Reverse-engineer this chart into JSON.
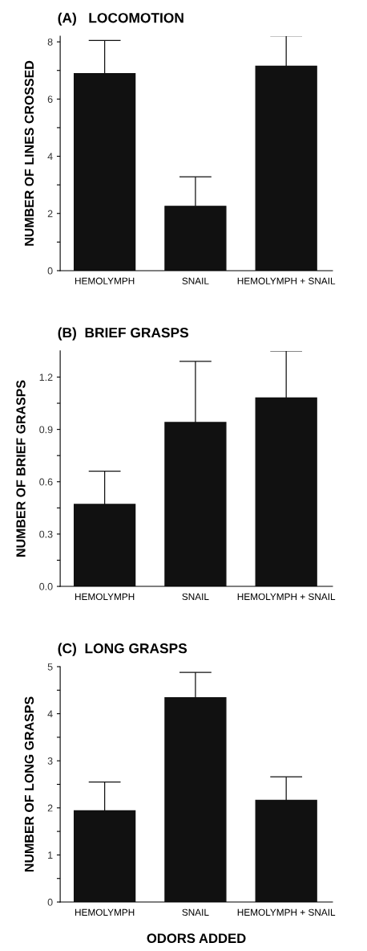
{
  "chart_data": [
    {
      "type": "bar",
      "title": "(A)   LOCOMOTION",
      "ylabel": "NUMBER OF LINES CROSSED",
      "categories": [
        "HEMOLYMPH",
        "SNAIL",
        "HEMOLYMPH + SNAIL"
      ],
      "values": [
        6.89,
        2.25,
        7.15
      ],
      "errors": [
        [
          6.89,
          8.05
        ],
        [
          2.25,
          3.28
        ],
        [
          7.15,
          8.21
        ]
      ],
      "color": "#111111",
      "ylim": [
        0,
        8.2
      ],
      "yticks": [
        0,
        {
          "value": 1,
          "label": null
        },
        2,
        {
          "value": 3,
          "label": null
        },
        4,
        {
          "value": 5,
          "label": null
        },
        6,
        {
          "value": 7,
          "label": null
        },
        8
      ],
      "grid": false
    },
    {
      "type": "bar",
      "title": "(B)  BRIEF GRASPS",
      "ylabel": "NUMBER OF BRIEF GRASPS",
      "categories": [
        "HEMOLYMPH",
        "SNAIL",
        "HEMOLYMPH + SNAIL"
      ],
      "values": [
        0.47,
        0.94,
        1.08
      ],
      "errors": [
        [
          0.47,
          0.66
        ],
        [
          0.94,
          1.29
        ],
        [
          1.08,
          1.35
        ]
      ],
      "color": "#111111",
      "ylim": [
        0,
        1.35
      ],
      "yticks": [
        {
          "value": 0,
          "label": "0.0"
        },
        {
          "value": 0.15,
          "label": null
        },
        {
          "value": 0.3,
          "label": "0.3"
        },
        {
          "value": 0.45,
          "label": null
        },
        {
          "value": 0.6,
          "label": "0.6"
        },
        {
          "value": 0.75,
          "label": null
        },
        {
          "value": 0.9,
          "label": "0.9"
        },
        {
          "value": 1.05,
          "label": null
        },
        {
          "value": 1.2,
          "label": "1.2"
        }
      ],
      "grid": false
    },
    {
      "type": "bar",
      "title": "(C)  LONG GRASPS",
      "ylabel": "NUMBER OF LONG GRASPS",
      "xlabel": "ODORS ADDED",
      "categories": [
        "HEMOLYMPH",
        "SNAIL",
        "HEMOLYMPH + SNAIL"
      ],
      "values": [
        1.94,
        4.34,
        2.16
      ],
      "errors": [
        [
          1.94,
          2.55
        ],
        [
          4.34,
          4.88
        ],
        [
          2.16,
          2.66
        ]
      ],
      "color": "#111111",
      "ylim": [
        0,
        5
      ],
      "yticks": [
        0,
        {
          "value": 0.5,
          "label": null
        },
        1,
        {
          "value": 1.5,
          "label": null
        },
        2,
        {
          "value": 2.5,
          "label": null
        },
        3,
        {
          "value": 3.5,
          "label": null
        },
        4,
        {
          "value": 4.5,
          "label": null
        },
        5
      ],
      "grid": false
    }
  ]
}
